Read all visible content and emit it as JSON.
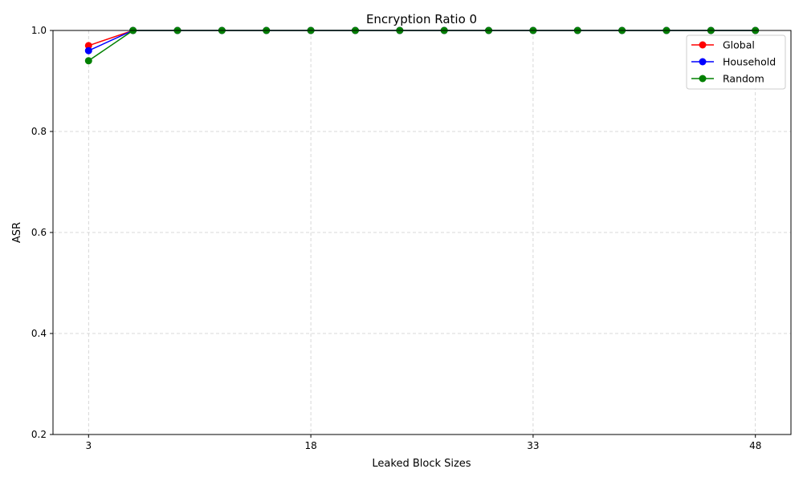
{
  "chart_data": {
    "type": "line",
    "title": "Encryption Ratio 0",
    "xlabel": "Leaked Block Sizes",
    "ylabel": "ASR",
    "x": [
      3,
      6,
      9,
      12,
      15,
      18,
      21,
      24,
      27,
      30,
      33,
      36,
      39,
      42,
      45,
      48
    ],
    "xlim": [
      0.6,
      50.4
    ],
    "ylim": [
      0.2,
      1.0
    ],
    "xticks": [
      3,
      18,
      33,
      48
    ],
    "yticks": [
      0.2,
      0.4,
      0.6,
      0.8,
      1.0
    ],
    "ytick_labels": [
      "0.2",
      "0.4",
      "0.6",
      "0.8",
      "1.0"
    ],
    "grid": true,
    "legend_position": "top-right",
    "series": [
      {
        "name": "Global",
        "color": "#ff0000",
        "values": [
          0.97,
          1.0,
          1.0,
          1.0,
          1.0,
          1.0,
          1.0,
          1.0,
          1.0,
          1.0,
          1.0,
          1.0,
          1.0,
          1.0,
          1.0,
          1.0
        ]
      },
      {
        "name": "Household",
        "color": "#0000ff",
        "values": [
          0.96,
          1.0,
          1.0,
          1.0,
          1.0,
          1.0,
          1.0,
          1.0,
          1.0,
          1.0,
          1.0,
          1.0,
          1.0,
          1.0,
          1.0,
          1.0
        ]
      },
      {
        "name": "Random",
        "color": "#008000",
        "values": [
          0.94,
          1.0,
          1.0,
          1.0,
          1.0,
          1.0,
          1.0,
          1.0,
          1.0,
          1.0,
          1.0,
          1.0,
          1.0,
          1.0,
          1.0,
          1.0
        ]
      }
    ]
  }
}
